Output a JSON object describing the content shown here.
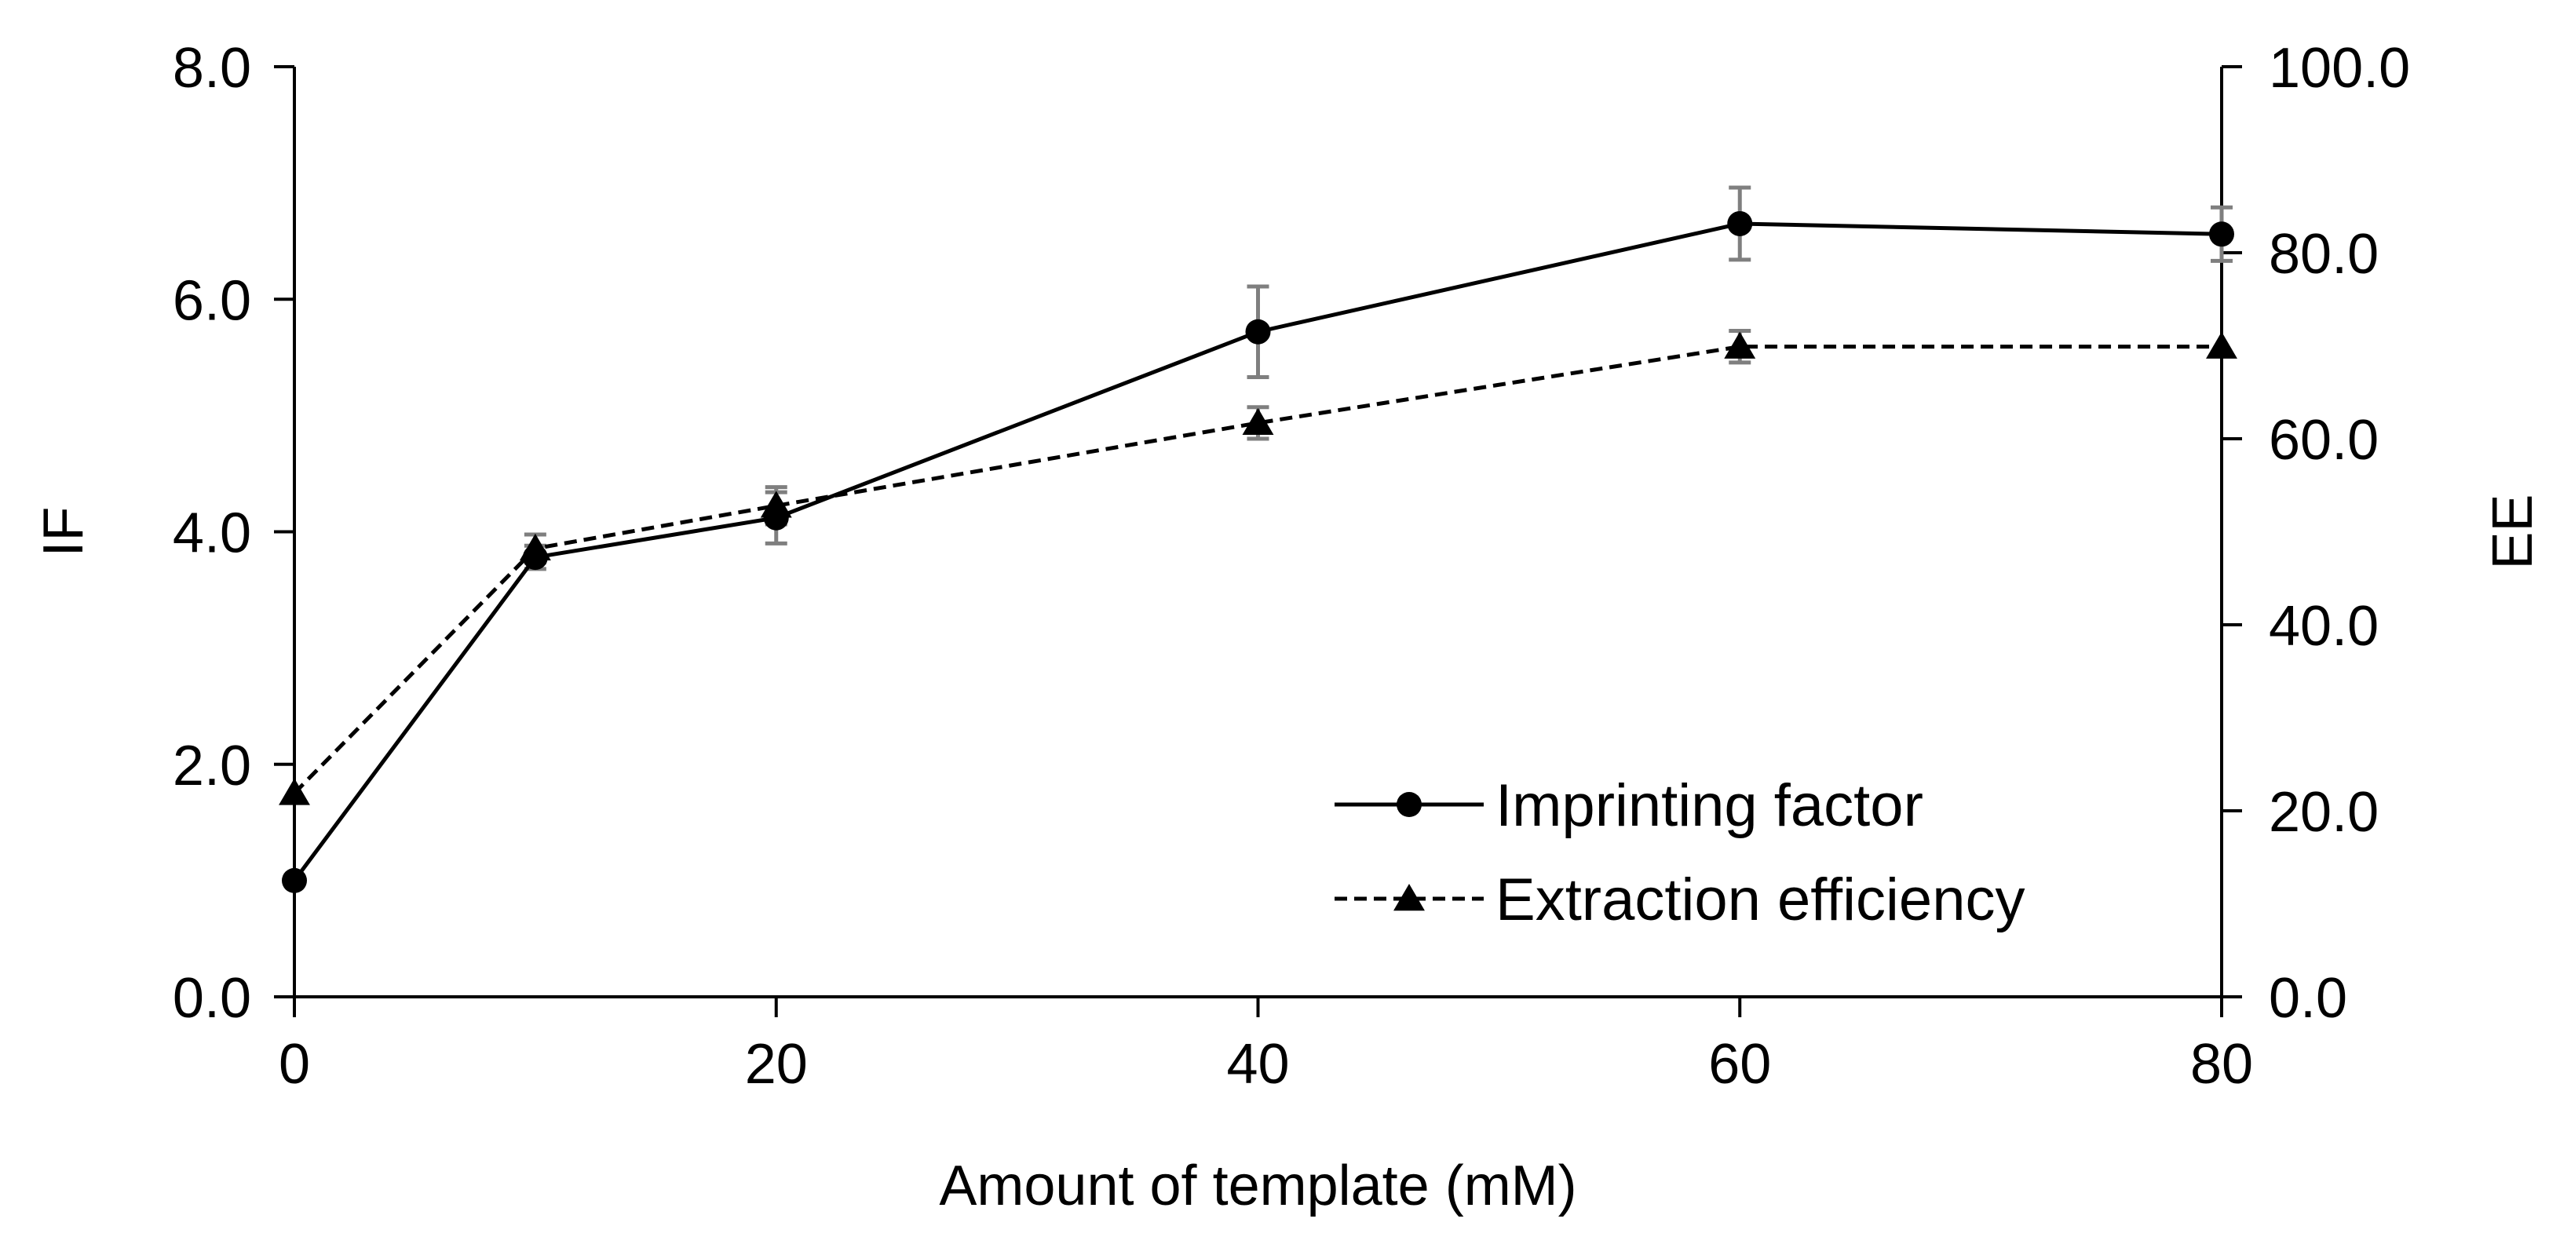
{
  "chart_data": {
    "type": "line",
    "title": "",
    "xlabel": "Amount of template (mM)",
    "ylabel_left": "IF",
    "ylabel_right": "EE",
    "xlim": [
      0,
      80
    ],
    "ylim_left": [
      0,
      8
    ],
    "ylim_right": [
      0,
      100
    ],
    "x_ticks": [
      "0",
      "20",
      "40",
      "60",
      "80"
    ],
    "x_tick_values": [
      0,
      20,
      40,
      60,
      80
    ],
    "y_left_ticks": [
      "0.0",
      "2.0",
      "4.0",
      "6.0",
      "8.0"
    ],
    "y_left_tick_values": [
      0,
      2,
      4,
      6,
      8
    ],
    "y_right_ticks": [
      "0.0",
      "20.0",
      "40.0",
      "60.0",
      "80.0",
      "100.0"
    ],
    "y_right_tick_values": [
      0,
      20,
      40,
      60,
      80,
      100
    ],
    "grid": false,
    "legend_position": "bottom-right",
    "series": [
      {
        "name": "Imprinting factor",
        "axis": "left",
        "line_style": "solid",
        "marker": "circle",
        "color": "#000000",
        "x": [
          0,
          10,
          20,
          40,
          60,
          80
        ],
        "values": [
          1.0,
          3.78,
          4.12,
          5.72,
          6.65,
          6.56
        ],
        "errors": [
          0,
          0.1,
          0.22,
          0.39,
          0.31,
          0.23
        ]
      },
      {
        "name": "Extraction efficiency",
        "axis": "right",
        "line_style": "dashed",
        "marker": "triangle",
        "color": "#000000",
        "x": [
          0,
          10,
          20,
          40,
          60,
          80
        ],
        "values": [
          21.9,
          48.2,
          52.8,
          61.7,
          69.9,
          69.9
        ],
        "errors": [
          0,
          1.5,
          2.0,
          1.7,
          1.7,
          0
        ]
      }
    ],
    "error_bar_color": "#7f7f7f"
  }
}
